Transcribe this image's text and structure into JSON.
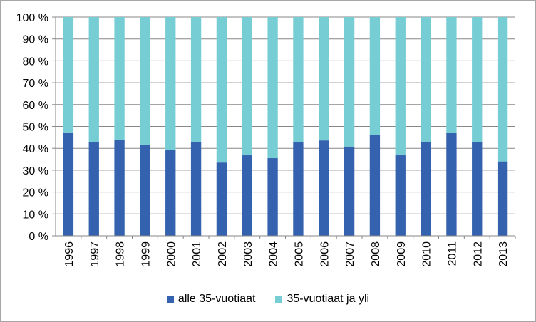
{
  "colors": {
    "series_0": "#3462ae",
    "series_1": "#76cdd4",
    "gridline": "#878787",
    "axis": "#878787"
  },
  "chart_data": {
    "type": "bar",
    "stacked": true,
    "title": "",
    "xlabel": "",
    "ylabel": "",
    "categories": [
      "1996",
      "1997",
      "1998",
      "1999",
      "2000",
      "2001",
      "2002",
      "2003",
      "2004",
      "2005",
      "2006",
      "2007",
      "2008",
      "2009",
      "2010",
      "2011",
      "2012",
      "2013"
    ],
    "series": [
      {
        "name": "alle 35-vuotiaat",
        "values": [
          47.3,
          43.0,
          44.0,
          41.7,
          39.2,
          42.7,
          33.5,
          36.8,
          35.5,
          43.0,
          43.6,
          40.8,
          46.0,
          36.8,
          43.0,
          47.0,
          43.0,
          34.0
        ]
      },
      {
        "name": "35-vuotiaat ja yli",
        "values": [
          52.7,
          57.0,
          56.0,
          58.3,
          60.8,
          57.3,
          66.5,
          63.2,
          64.5,
          57.0,
          56.4,
          59.2,
          54.0,
          63.2,
          57.0,
          53.0,
          57.0,
          66.0
        ]
      }
    ],
    "ylim": [
      0,
      100
    ],
    "yticks": [
      0,
      10,
      20,
      30,
      40,
      50,
      60,
      70,
      80,
      90,
      100
    ],
    "ytick_labels": [
      "0 %",
      "10 %",
      "20 %",
      "30 %",
      "40 %",
      "50 %",
      "60 %",
      "70 %",
      "80 %",
      "90 %",
      "100 %"
    ],
    "grid": true,
    "legend_position": "bottom"
  }
}
